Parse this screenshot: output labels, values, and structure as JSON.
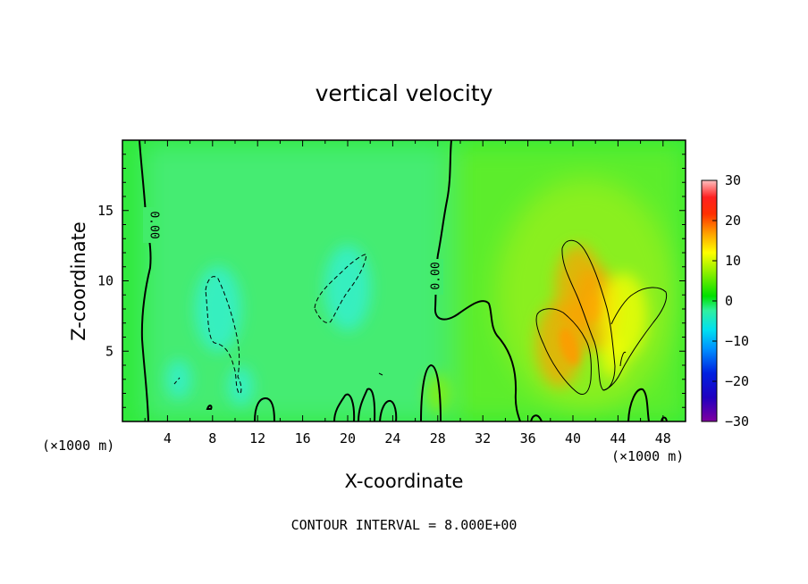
{
  "chart_data": {
    "type": "heatmap",
    "title": "vertical velocity",
    "xlabel": "X-coordinate",
    "ylabel": "Z-coordinate",
    "x_unit_label": "(×1000 m)",
    "x_unit_label_right": "(×1000 m)",
    "xlim": [
      0,
      50
    ],
    "ylim": [
      0,
      20
    ],
    "x_ticks": [
      4,
      8,
      12,
      16,
      20,
      24,
      28,
      32,
      36,
      40,
      44,
      48
    ],
    "x_tick_labels": [
      "4",
      "8",
      "12",
      "16",
      "20",
      "24",
      "28",
      "32",
      "36",
      "40",
      "44",
      "48"
    ],
    "y_ticks": [
      5,
      10,
      15
    ],
    "y_tick_labels": [
      "5",
      "10",
      "15"
    ],
    "colorbar": {
      "min": -30,
      "max": 30,
      "ticks": [
        30,
        20,
        10,
        0,
        -10,
        -20,
        -30
      ],
      "tick_labels": [
        "30",
        "20",
        "10",
        "0",
        "−10",
        "−20",
        "−30"
      ],
      "colors": [
        "#8000a0",
        "#0000c8",
        "#0060ff",
        "#00d0ff",
        "#30f0c0",
        "#00e000",
        "#90f000",
        "#ffff00",
        "#ffa000",
        "#ff3000",
        "#ff0000",
        "#ffb0b0"
      ]
    },
    "contour_interval_text": "CONTOUR INTERVAL = 8.000E+00",
    "zero_contour_label": "0.00",
    "zero_contour_label_2": "0.00",
    "field_features": [
      {
        "x": 8.5,
        "z": 8.0,
        "value": -9
      },
      {
        "x": 20.0,
        "z": 9.5,
        "value": -8
      },
      {
        "x": 5.0,
        "z": 3.0,
        "value": -6
      },
      {
        "x": 10.5,
        "z": 2.5,
        "value": -7
      },
      {
        "x": 38.8,
        "z": 5.5,
        "value": 14
      },
      {
        "x": 40.5,
        "z": 9.5,
        "value": 11
      },
      {
        "x": 42.0,
        "z": 8.0,
        "value": 12
      },
      {
        "x": 44.5,
        "z": 7.5,
        "value": 9
      },
      {
        "x": 43.5,
        "z": 4.5,
        "value": 6
      },
      {
        "x": 28.0,
        "z": 2.0,
        "value": 3
      }
    ]
  }
}
